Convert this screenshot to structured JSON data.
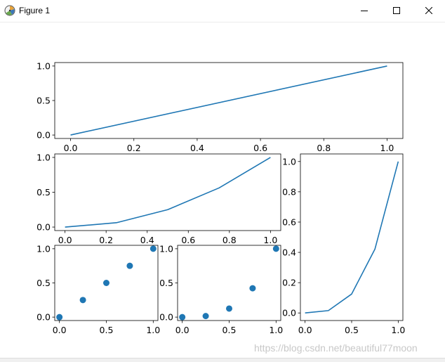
{
  "window": {
    "title": "Figure 1",
    "icon": "matplotlib-figure-icon",
    "controls": [
      "minimize-icon",
      "maximize-icon",
      "close-icon"
    ]
  },
  "watermark": "https://blog.csdn.net/beautiful77moon",
  "colors": {
    "line": "#1f77b4",
    "axes": "#000000",
    "background": "#ffffff"
  },
  "chart_data": [
    {
      "id": "top",
      "type": "line",
      "x": [
        0,
        1
      ],
      "y": [
        0,
        1
      ],
      "xlim": [
        -0.05,
        1.05
      ],
      "ylim": [
        -0.05,
        1.05
      ],
      "xticks": [
        0.0,
        0.2,
        0.4,
        0.6,
        0.8,
        1.0
      ],
      "xtick_labels": [
        "0.0",
        "0.2",
        "0.4",
        "0.6",
        "0.8",
        "1.0"
      ],
      "yticks": [
        0.0,
        0.5,
        1.0
      ],
      "ytick_labels": [
        "0.0",
        "0.5",
        "1.0"
      ],
      "grid": false
    },
    {
      "id": "middle-left",
      "type": "line",
      "x": [
        0,
        0.25,
        0.5,
        0.75,
        1.0
      ],
      "y": [
        0,
        0.0625,
        0.25,
        0.5625,
        1.0
      ],
      "xlim": [
        -0.05,
        1.05
      ],
      "ylim": [
        -0.05,
        1.05
      ],
      "xticks": [
        0.0,
        0.2,
        0.4,
        0.6,
        0.8,
        1.0
      ],
      "xtick_labels": [
        "0.0",
        "0.2",
        "0.4",
        "0.6",
        "0.8",
        "1.0"
      ],
      "yticks": [
        0.0,
        0.5,
        1.0
      ],
      "ytick_labels": [
        "0.0",
        "0.5",
        "1.0"
      ],
      "grid": false
    },
    {
      "id": "right",
      "type": "line",
      "x": [
        0,
        0.25,
        0.5,
        0.75,
        1.0
      ],
      "y": [
        0,
        0.015625,
        0.125,
        0.421875,
        1.0
      ],
      "xlim": [
        -0.05,
        1.05
      ],
      "ylim": [
        -0.05,
        1.05
      ],
      "xticks": [
        0.0,
        0.5,
        1.0
      ],
      "xtick_labels": [
        "0.0",
        "0.5",
        "1.0"
      ],
      "yticks": [
        0.0,
        0.2,
        0.4,
        0.6,
        0.8,
        1.0
      ],
      "ytick_labels": [
        "0.0",
        "0.2",
        "0.4",
        "0.6",
        "0.8",
        "1.0"
      ],
      "grid": false
    },
    {
      "id": "bottom-left",
      "type": "scatter",
      "x": [
        0,
        0.25,
        0.5,
        0.75,
        1.0
      ],
      "y": [
        0,
        0.25,
        0.5,
        0.75,
        1.0
      ],
      "xlim": [
        -0.05,
        1.05
      ],
      "ylim": [
        -0.05,
        1.05
      ],
      "xticks": [
        0.0,
        0.5,
        1.0
      ],
      "xtick_labels": [
        "0.0",
        "0.5",
        "1.0"
      ],
      "yticks": [
        0.0,
        0.5,
        1.0
      ],
      "ytick_labels": [
        "0.0",
        "0.5",
        "1.0"
      ],
      "grid": false
    },
    {
      "id": "bottom-middle",
      "type": "scatter",
      "x": [
        0,
        0.25,
        0.5,
        0.75,
        1.0
      ],
      "y": [
        0,
        0.015625,
        0.125,
        0.421875,
        1.0
      ],
      "xlim": [
        -0.05,
        1.05
      ],
      "ylim": [
        -0.05,
        1.05
      ],
      "xticks": [
        0.0,
        0.5,
        1.0
      ],
      "xtick_labels": [
        "0.0",
        "0.5",
        "1.0"
      ],
      "yticks": [
        0.0,
        0.5,
        1.0
      ],
      "ytick_labels": [
        "0.0",
        "0.5",
        "1.0"
      ],
      "grid": false
    }
  ]
}
